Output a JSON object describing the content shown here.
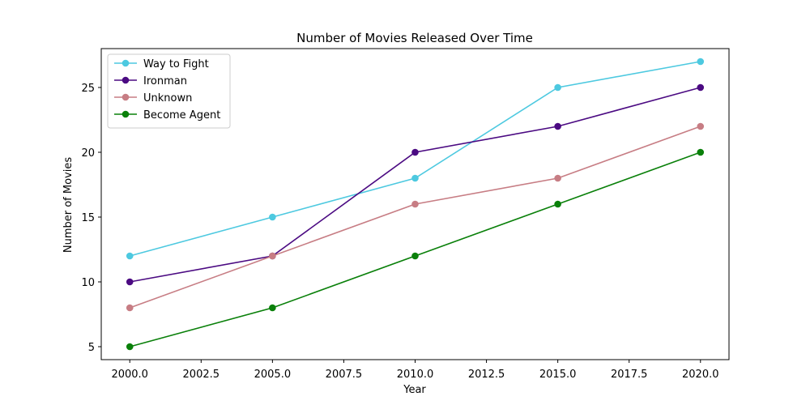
{
  "chart_data": {
    "type": "line",
    "title": "Number of Movies Released Over Time",
    "xlabel": "Year",
    "ylabel": "Number of Movies",
    "x": [
      2000,
      2005,
      2010,
      2015,
      2020
    ],
    "xlim": [
      1999,
      2021
    ],
    "ylim": [
      4.0,
      28.0
    ],
    "x_ticks": [
      "2000.0",
      "2002.5",
      "2005.0",
      "2007.5",
      "2010.0",
      "2012.5",
      "2015.0",
      "2017.5",
      "2020.0"
    ],
    "y_ticks": [
      "5",
      "10",
      "15",
      "20",
      "25"
    ],
    "grid": false,
    "legend_position": "top-left",
    "series": [
      {
        "name": "Way to Fight",
        "color": "#4dc9e0",
        "values": [
          12,
          15,
          18,
          25,
          27
        ]
      },
      {
        "name": "Ironman",
        "color": "#4b0a82",
        "values": [
          10,
          12,
          20,
          22,
          25
        ]
      },
      {
        "name": "Unknown",
        "color": "#c77d84",
        "values": [
          8,
          12,
          16,
          18,
          22
        ]
      },
      {
        "name": "Become Agent",
        "color": "#0a800a",
        "values": [
          5,
          8,
          12,
          16,
          20
        ]
      }
    ]
  }
}
